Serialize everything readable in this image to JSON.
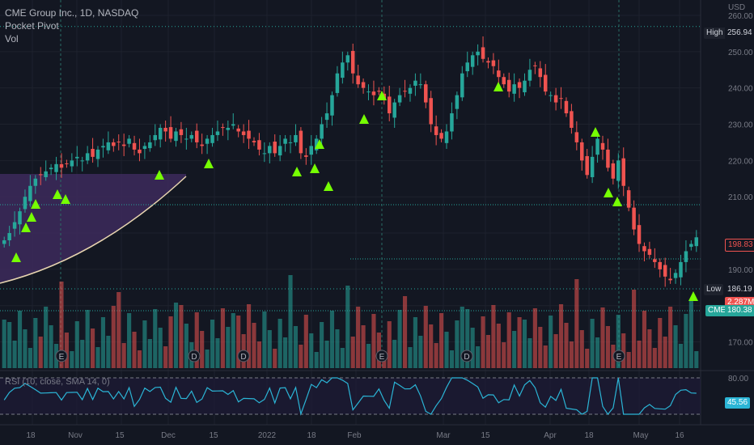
{
  "legend": {
    "symbol": "CME Group Inc., 1D, NASDAQ",
    "study1": "Pocket Pivot",
    "study2": "Vol",
    "rsi": "RSI (10, close, SMA 14, 0)"
  },
  "price_axis": {
    "currency": "USD",
    "ticks": [
      "260.00",
      "250.00",
      "240.00",
      "230.00",
      "220.00",
      "210.00",
      "190.00",
      "170.00"
    ],
    "high_label": "High",
    "high_value": "256.94",
    "low_label": "Low",
    "low_value": "186.19",
    "last_price": "198.83",
    "volume_value": "2.287M",
    "symbol_tag": "CME",
    "symbol_tag_value": "180.38"
  },
  "rsi_axis": {
    "ticks": [
      "80.00"
    ],
    "value": "45.56"
  },
  "time_axis": [
    "18",
    "Nov",
    "15",
    "Dec",
    "15",
    "2022",
    "18",
    "Feb",
    "Mar",
    "15",
    "Apr",
    "18",
    "May",
    "16"
  ],
  "colors": {
    "up": "#26a69a",
    "down": "#ef5350",
    "signal": "#76ff03",
    "rsi": "#2bb5d6",
    "zone": "#3d2a5c",
    "curve": "#e8d5b0"
  },
  "events": [
    "E",
    "D",
    "D",
    "E",
    "D",
    "E"
  ],
  "chart_data": {
    "type": "candlestick",
    "title": "CME Group Inc., 1D, NASDAQ",
    "y_range": [
      165,
      262
    ],
    "close_series": [
      198,
      200,
      203,
      206,
      210,
      213,
      215,
      216,
      217,
      218,
      219,
      218,
      219,
      220,
      221,
      220,
      222,
      221,
      223,
      224,
      225,
      224,
      225,
      224,
      226,
      223,
      222,
      224,
      225,
      227,
      229,
      228,
      226,
      228,
      227,
      226,
      227,
      225,
      224,
      226,
      227,
      228,
      229,
      229,
      230,
      228,
      227,
      226,
      225,
      223,
      222,
      224,
      222,
      224,
      226,
      225,
      227,
      222,
      221,
      224,
      226,
      230,
      233,
      238,
      244,
      247,
      249,
      244,
      241,
      240,
      239,
      238,
      239,
      237,
      233,
      236,
      238,
      239,
      240,
      242,
      241,
      236,
      230,
      227,
      226,
      228,
      233,
      238,
      244,
      247,
      249,
      250,
      248,
      247,
      246,
      243,
      241,
      239,
      241,
      240,
      242,
      245,
      246,
      243,
      239,
      238,
      236,
      237,
      233,
      229,
      225,
      220,
      216,
      221,
      226,
      223,
      218,
      215,
      220,
      213,
      207,
      201,
      197,
      195,
      194,
      192,
      190,
      188,
      187,
      189,
      192,
      195,
      197,
      198.83
    ],
    "last_close": 198.83,
    "high": 256.94,
    "low": 186.19
  }
}
